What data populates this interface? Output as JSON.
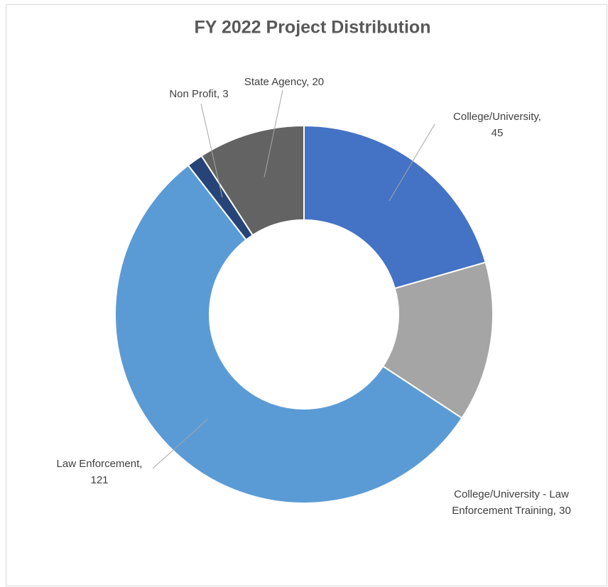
{
  "chart_data": {
    "type": "donut",
    "title": "FY 2022 Project Distribution",
    "values": [
      45,
      30,
      121,
      3,
      20
    ],
    "value_labels": [
      "College/University,\n45",
      "College/University - Law\nEnforcement Training, 30",
      "Law Enforcement,\n121",
      "Non Profit, 3",
      "State Agency, 20"
    ],
    "colors": [
      "#4472c4",
      "#a5a5a5",
      "#5b9bd5",
      "#264478",
      "#636363"
    ]
  }
}
